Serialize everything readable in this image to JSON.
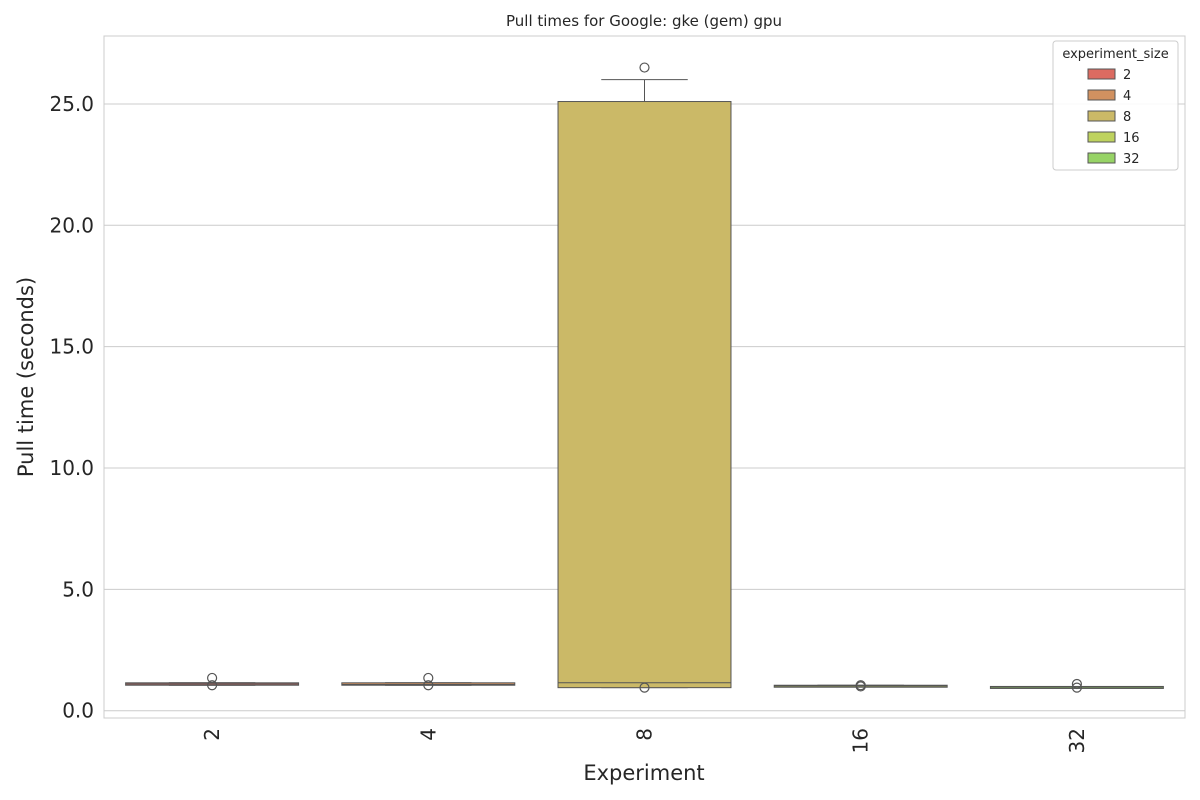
{
  "chart_data": {
    "type": "box",
    "title": "Pull times for Google: gke (gem) gpu",
    "xlabel": "Experiment",
    "ylabel": "Pull time (seconds)",
    "ylim": [
      -0.3,
      27.8
    ],
    "yticks": [
      0.0,
      5.0,
      10.0,
      15.0,
      20.0,
      25.0
    ],
    "ytick_labels": [
      "0.0",
      "5.0",
      "10.0",
      "15.0",
      "20.0",
      "25.0"
    ],
    "categories": [
      "2",
      "4",
      "8",
      "16",
      "32"
    ],
    "grid": true,
    "legend": {
      "title": "experiment_size",
      "placement": "top-right",
      "entries": [
        "2",
        "4",
        "8",
        "16",
        "32"
      ]
    },
    "series": [
      {
        "name": "2",
        "color": "#dc6b61",
        "q1": 1.05,
        "median": 1.1,
        "q3": 1.15,
        "whisker_low": 1.05,
        "whisker_high": 1.15,
        "outliers": [
          1.35,
          1.05
        ]
      },
      {
        "name": "4",
        "color": "#d19160",
        "q1": 1.05,
        "median": 1.08,
        "q3": 1.15,
        "whisker_low": 1.05,
        "whisker_high": 1.15,
        "outliers": [
          1.35,
          1.05
        ]
      },
      {
        "name": "8",
        "color": "#cbb967",
        "q1": 0.95,
        "median": 1.15,
        "q3": 25.1,
        "whisker_low": 0.95,
        "whisker_high": 26.0,
        "outliers": [
          26.5,
          0.95
        ]
      },
      {
        "name": "16",
        "color": "#bed25e",
        "q1": 1.0,
        "median": 1.02,
        "q3": 1.05,
        "whisker_low": 1.0,
        "whisker_high": 1.05,
        "outliers": [
          1.05,
          1.0
        ]
      },
      {
        "name": "32",
        "color": "#97d366",
        "q1": 0.95,
        "median": 0.97,
        "q3": 1.0,
        "whisker_low": 0.95,
        "whisker_high": 1.0,
        "outliers": [
          1.1,
          0.95
        ]
      }
    ]
  }
}
